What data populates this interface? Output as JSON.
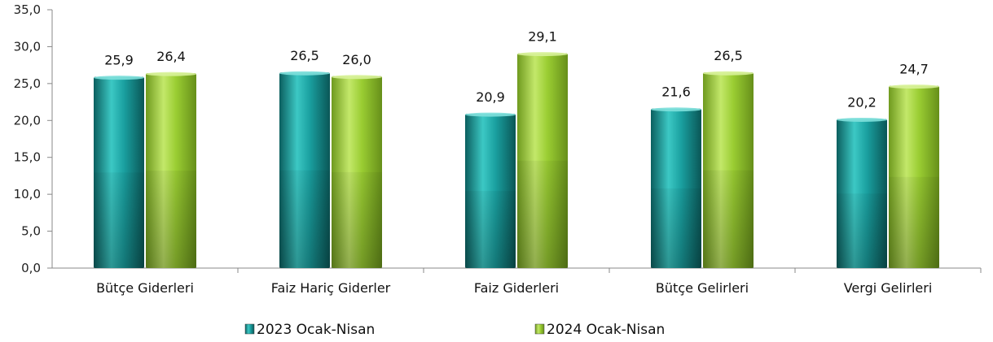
{
  "chart_data": {
    "type": "bar",
    "categories": [
      "Bütçe Giderleri",
      "Faiz Hariç Giderler",
      "Faiz Giderleri",
      "Bütçe Gelirleri",
      "Vergi Gelirleri"
    ],
    "series": [
      {
        "name": "2023 Ocak-Nisan",
        "values": [
          25.9,
          26.5,
          20.9,
          21.6,
          20.2
        ],
        "labels": [
          "25,9",
          "26,5",
          "20,9",
          "21,6",
          "20,2"
        ],
        "color": "#1aa0a0"
      },
      {
        "name": "2024 Ocak-Nisan",
        "values": [
          26.4,
          26.0,
          29.1,
          26.5,
          24.7
        ],
        "labels": [
          "26,4",
          "26,0",
          "29,1",
          "26,5",
          "24,7"
        ],
        "color": "#9acd32"
      }
    ],
    "ylim": [
      0,
      35
    ],
    "yticks": [
      "0,0",
      "5,0",
      "10,0",
      "15,0",
      "20,0",
      "25,0",
      "30,0",
      "35,0"
    ],
    "ytick_step": 5,
    "grid": false,
    "legend_position": "bottom",
    "title": "",
    "xlabel": "",
    "ylabel": ""
  }
}
